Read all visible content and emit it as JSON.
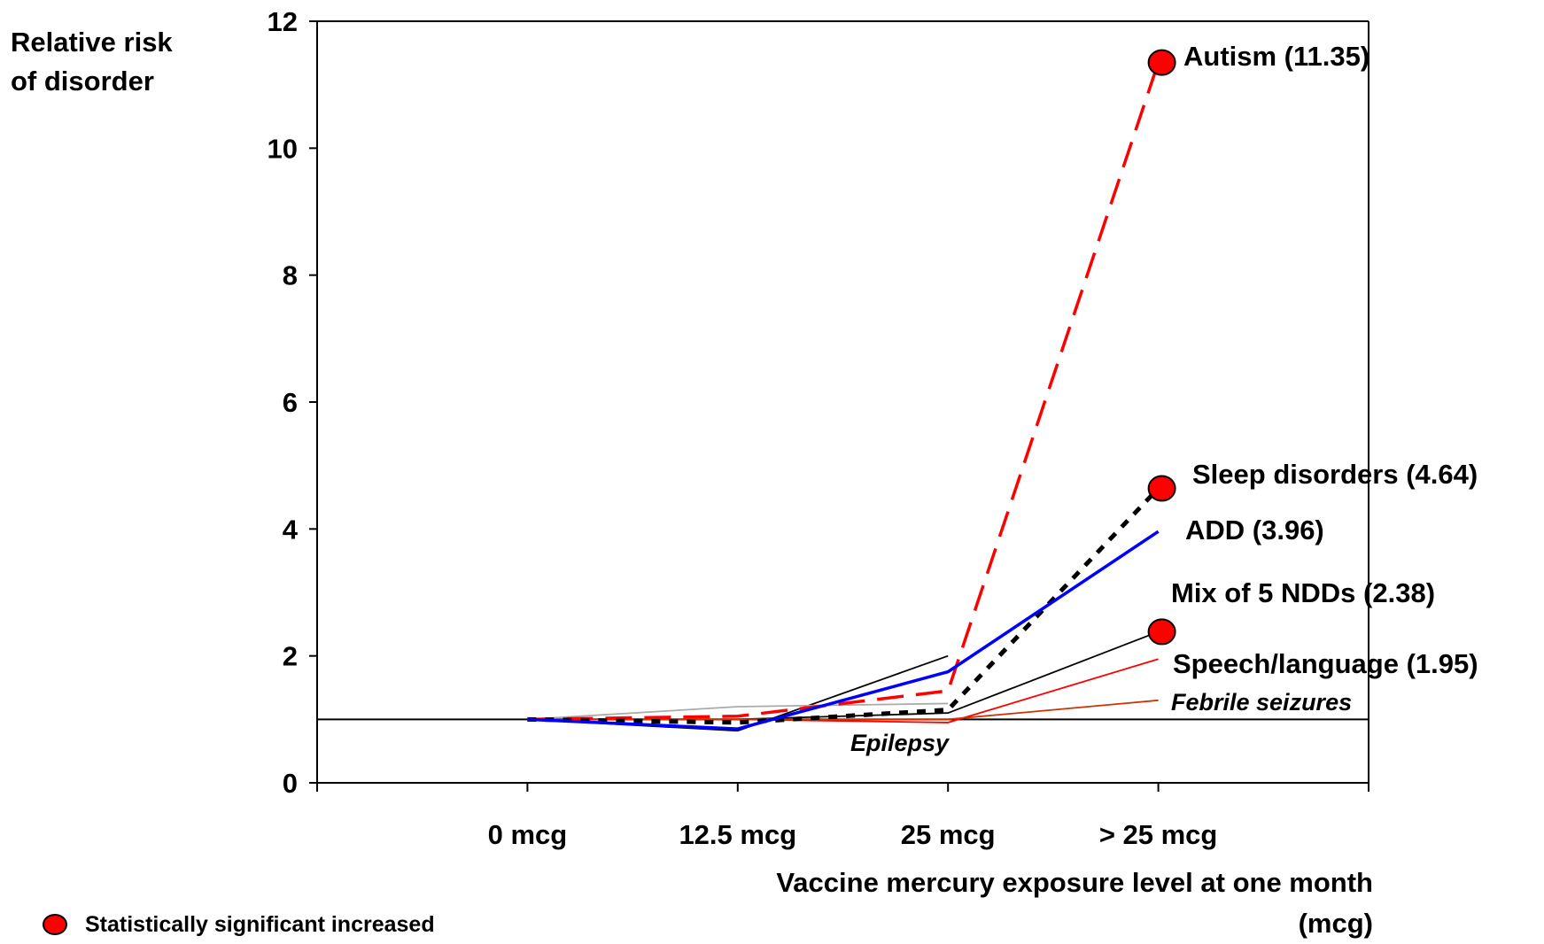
{
  "chart_data": {
    "type": "line",
    "categories": [
      "0 mcg",
      "12.5 mcg",
      "25 mcg",
      "> 25 mcg"
    ],
    "ylabel_lines": [
      "Relative risk",
      "of disorder"
    ],
    "xlabel_lines": [
      "Vaccine mercury exposure level at one month",
      "(mcg)"
    ],
    "yticks": [
      0,
      2,
      4,
      6,
      8,
      10,
      12
    ],
    "ylim": [
      0,
      12
    ],
    "grid": false,
    "reference_line": 1,
    "series": [
      {
        "name": "Autism (11.35)",
        "values": [
          1.0,
          1.05,
          1.45,
          11.35
        ],
        "color": "#ff0000",
        "style": "dashed",
        "significant": true
      },
      {
        "name": "Sleep disorders (4.64)",
        "values": [
          1.0,
          0.95,
          1.15,
          4.64
        ],
        "color": "#000000",
        "style": "dotted",
        "significant": true
      },
      {
        "name": "ADD (3.96)",
        "values": [
          1.0,
          0.85,
          1.75,
          3.96
        ],
        "color": "#0000ff",
        "style": "solid",
        "significant": false
      },
      {
        "name": "Mix of 5 NDDs (2.38)",
        "values": [
          1.0,
          1.0,
          1.1,
          2.38
        ],
        "color": "#000000",
        "style": "thin",
        "significant": true
      },
      {
        "name": "Speech/language (1.95)",
        "values": [
          1.0,
          1.0,
          0.95,
          1.95
        ],
        "color": "#ff0000",
        "style": "thin",
        "significant": false
      },
      {
        "name": "Febrile seizures",
        "values": [
          1.0,
          1.0,
          1.0,
          1.3
        ],
        "color": "#cc3300",
        "style": "thin",
        "significant": false
      },
      {
        "name": "Epilepsy",
        "values": [
          1.0,
          0.82,
          2.0,
          null
        ],
        "color": "#000000",
        "style": "thin",
        "significant": false
      },
      {
        "name": "",
        "values": [
          1.0,
          1.2,
          1.25,
          null
        ],
        "color": "#aaaaaa",
        "style": "thin",
        "significant": false
      }
    ],
    "legend": [
      {
        "marker": "red-circle",
        "label": "Statistically significant increased"
      }
    ]
  }
}
